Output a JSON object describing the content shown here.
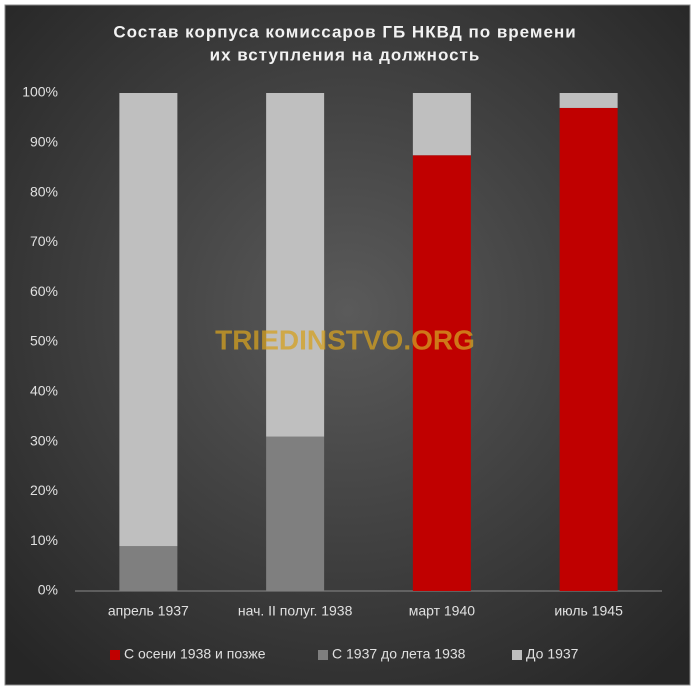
{
  "chart_data": {
    "type": "stacked_bar",
    "title": [
      "Состав корпуса комиссаров ГБ НКВД по времени",
      "их вступления на должность"
    ],
    "watermark": "TRIEDINSTVO.ORG",
    "categories": [
      "апрель 1937",
      "нач. II полуг. 1938",
      "март 1940",
      "июль 1945"
    ],
    "series": [
      {
        "name": "С осени 1938 и позже",
        "color": "#c00000",
        "values": [
          0,
          0,
          87.5,
          97
        ]
      },
      {
        "name": "С 1937 до лета 1938",
        "color": "#7f7f7f",
        "values": [
          9,
          31,
          0,
          0
        ]
      },
      {
        "name": "До 1937",
        "color": "#bfbfbf",
        "values": [
          91,
          69,
          12.5,
          3
        ]
      }
    ],
    "ylim": [
      0,
      100
    ],
    "yticks": [
      {
        "value": 0,
        "label": "0%"
      },
      {
        "value": 10,
        "label": "10%"
      },
      {
        "value": 20,
        "label": "20%"
      },
      {
        "value": 30,
        "label": "30%"
      },
      {
        "value": 40,
        "label": "40%"
      },
      {
        "value": 50,
        "label": "50%"
      },
      {
        "value": 60,
        "label": "60%"
      },
      {
        "value": 70,
        "label": "70%"
      },
      {
        "value": 80,
        "label": "80%"
      },
      {
        "value": 90,
        "label": "90%"
      },
      {
        "value": 100,
        "label": "100%"
      }
    ],
    "grid": false,
    "legend": "bottom"
  }
}
